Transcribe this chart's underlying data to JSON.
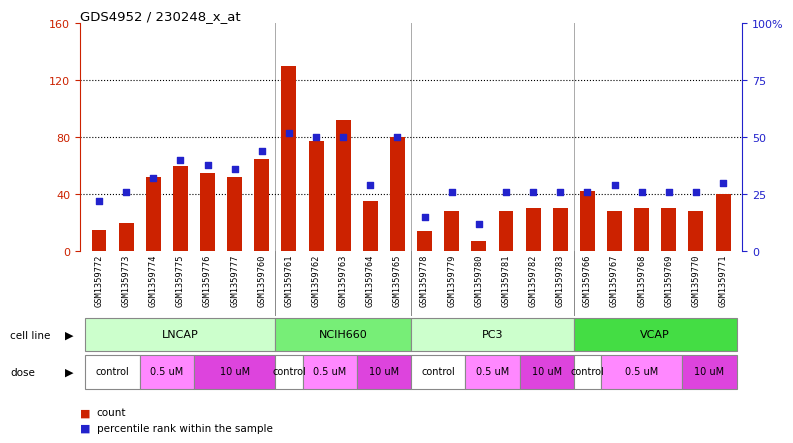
{
  "title": "GDS4952 / 230248_x_at",
  "samples": [
    "GSM1359772",
    "GSM1359773",
    "GSM1359774",
    "GSM1359775",
    "GSM1359776",
    "GSM1359777",
    "GSM1359760",
    "GSM1359761",
    "GSM1359762",
    "GSM1359763",
    "GSM1359764",
    "GSM1359765",
    "GSM1359778",
    "GSM1359779",
    "GSM1359780",
    "GSM1359781",
    "GSM1359782",
    "GSM1359783",
    "GSM1359766",
    "GSM1359767",
    "GSM1359768",
    "GSM1359769",
    "GSM1359770",
    "GSM1359771"
  ],
  "counts": [
    15,
    20,
    52,
    60,
    55,
    52,
    65,
    130,
    77,
    92,
    35,
    80,
    14,
    28,
    7,
    28,
    30,
    30,
    42,
    28,
    30,
    30,
    28,
    40
  ],
  "percentiles": [
    22,
    26,
    32,
    40,
    38,
    36,
    44,
    52,
    50,
    50,
    29,
    50,
    15,
    26,
    12,
    26,
    26,
    26,
    26,
    29,
    26,
    26,
    26,
    30
  ],
  "cell_lines": [
    {
      "name": "LNCAP",
      "start": 0,
      "end": 7,
      "color": "#ccffcc"
    },
    {
      "name": "NCIH660",
      "start": 7,
      "end": 12,
      "color": "#77ee77"
    },
    {
      "name": "PC3",
      "start": 12,
      "end": 18,
      "color": "#ccffcc"
    },
    {
      "name": "VCAP",
      "start": 18,
      "end": 24,
      "color": "#44dd44"
    }
  ],
  "doses": [
    {
      "label": "control",
      "start": 0,
      "end": 2,
      "color": "#ffffff"
    },
    {
      "label": "0.5 uM",
      "start": 2,
      "end": 4,
      "color": "#ff88ff"
    },
    {
      "label": "10 uM",
      "start": 4,
      "end": 7,
      "color": "#dd44dd"
    },
    {
      "label": "control",
      "start": 7,
      "end": 8,
      "color": "#ffffff"
    },
    {
      "label": "0.5 uM",
      "start": 8,
      "end": 10,
      "color": "#ff88ff"
    },
    {
      "label": "10 uM",
      "start": 10,
      "end": 12,
      "color": "#dd44dd"
    },
    {
      "label": "control",
      "start": 12,
      "end": 14,
      "color": "#ffffff"
    },
    {
      "label": "0.5 uM",
      "start": 14,
      "end": 16,
      "color": "#ff88ff"
    },
    {
      "label": "10 uM",
      "start": 16,
      "end": 18,
      "color": "#dd44dd"
    },
    {
      "label": "control",
      "start": 18,
      "end": 19,
      "color": "#ffffff"
    },
    {
      "label": "0.5 uM",
      "start": 19,
      "end": 22,
      "color": "#ff88ff"
    },
    {
      "label": "10 uM",
      "start": 22,
      "end": 24,
      "color": "#dd44dd"
    }
  ],
  "bar_color": "#cc2200",
  "dot_color": "#2222cc",
  "left_ylim": [
    0,
    160
  ],
  "right_ylim": [
    0,
    100
  ],
  "left_yticks": [
    0,
    40,
    80,
    120,
    160
  ],
  "right_yticks": [
    0,
    25,
    50,
    75,
    100
  ],
  "right_yticklabels": [
    "0",
    "25",
    "50",
    "75",
    "100%"
  ],
  "hgrid_vals": [
    40,
    80,
    120
  ],
  "xlabel_bg": "#cccccc",
  "cell_line_border": "#888888",
  "dose_border": "#888888"
}
